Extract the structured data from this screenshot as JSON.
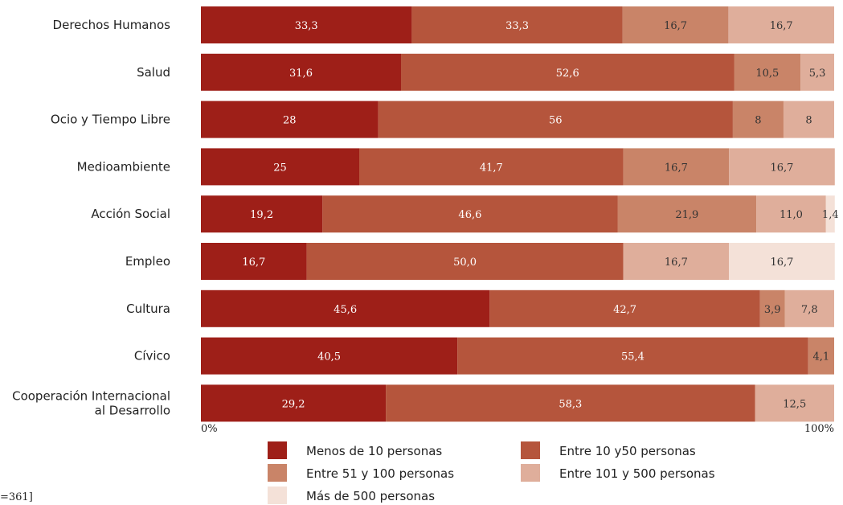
{
  "chart_data": {
    "type": "bar",
    "orientation": "horizontal",
    "stacked": true,
    "normalized_percent": true,
    "categories": [
      "Derechos Humanos",
      "Salud",
      "Ocio y Tiempo Libre",
      "Medioambiente",
      "Acción Social",
      "Empleo",
      "Cultura",
      "Cívico",
      "Cooperación Internacional al Desarrollo"
    ],
    "category_lines": [
      [
        "Derechos Humanos"
      ],
      [
        "Salud"
      ],
      [
        "Ocio y Tiempo Libre"
      ],
      [
        "Medioambiente"
      ],
      [
        "Acción Social"
      ],
      [
        "Empleo"
      ],
      [
        "Cultura"
      ],
      [
        "Cívico"
      ],
      [
        "Cooperación Internacional",
        "al Desarrollo"
      ]
    ],
    "series": [
      {
        "name": "Menos de 10 personas",
        "color": "#9e1f18",
        "values": [
          33.3,
          31.6,
          28,
          25,
          19.2,
          16.7,
          45.6,
          40.5,
          29.2
        ],
        "labels": [
          "33,3",
          "31,6",
          "28",
          "25",
          "19,2",
          "16,7",
          "45,6",
          "40,5",
          "29,2"
        ]
      },
      {
        "name": "Entre 10 y50 personas",
        "color": "#b5553c",
        "values": [
          33.3,
          52.6,
          56,
          41.7,
          46.6,
          50.0,
          42.7,
          55.4,
          58.3
        ],
        "labels": [
          "33,3",
          "52,6",
          "56",
          "41,7",
          "46,6",
          "50,0",
          "42,7",
          "55,4",
          "58,3"
        ]
      },
      {
        "name": "Entre 51 y 100 personas",
        "color": "#c98468",
        "values": [
          16.7,
          10.5,
          8,
          16.7,
          21.9,
          0,
          3.9,
          4.1,
          0
        ],
        "labels": [
          "16,7",
          "10,5",
          "8",
          "16,7",
          "21,9",
          "",
          "3,9",
          "4,1",
          ""
        ]
      },
      {
        "name": "Entre 101 y 500 personas",
        "color": "#dfae9b",
        "values": [
          16.7,
          5.3,
          8,
          16.7,
          11.0,
          16.7,
          7.8,
          0,
          12.5
        ],
        "labels": [
          "16,7",
          "5,3",
          "8",
          "16,7",
          "11,0",
          "16,7",
          "7,8",
          "",
          "12,5"
        ]
      },
      {
        "name": "Más de 500 personas",
        "color": "#f4e1d8",
        "values": [
          0,
          0,
          0,
          0,
          1.4,
          16.7,
          0,
          0,
          0
        ],
        "labels": [
          "",
          "",
          "",
          "",
          "1,4",
          "16,7",
          "",
          "",
          ""
        ]
      }
    ],
    "x_tick_labels": [
      "0%",
      "100%"
    ],
    "xlim": [
      0,
      100
    ],
    "legend_position": "bottom",
    "grid": false
  },
  "footnote": "=361]"
}
